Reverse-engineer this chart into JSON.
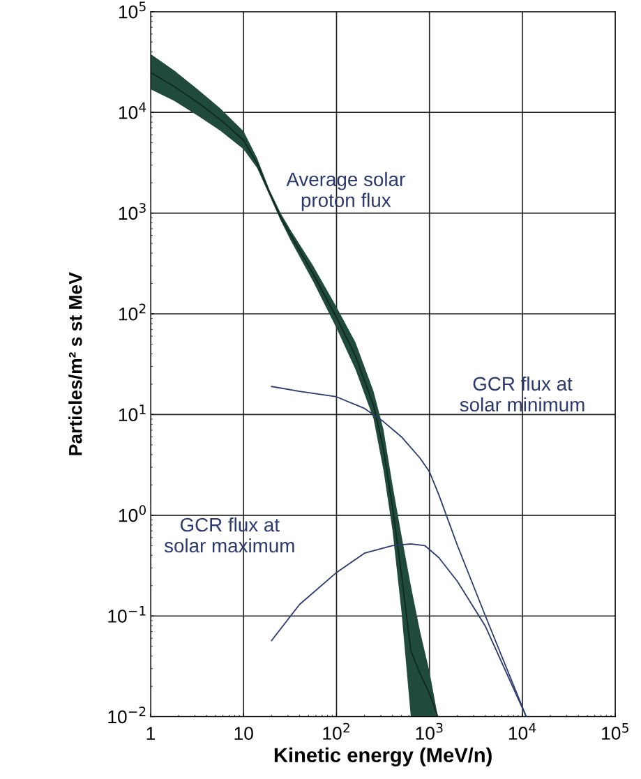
{
  "chart_data": {
    "type": "line",
    "xlabel": "Kinetic energy (MeV/n)",
    "ylabel": "Particles/m² s st MeV",
    "log": "xy",
    "grid": true,
    "marker": "none",
    "line_style": "solid",
    "xlim": [
      1,
      100000
    ],
    "ylim": [
      0.01,
      100000
    ],
    "xticks": [
      {
        "value": 1,
        "label": "1"
      },
      {
        "value": 10,
        "label": "10"
      },
      {
        "value": 100,
        "label": "10$^{2}$"
      },
      {
        "value": 1000,
        "label": "10$^{3}$"
      },
      {
        "value": 10000,
        "label": "10$^{4}$"
      },
      {
        "value": 100000,
        "label": "10$^{5}$"
      }
    ],
    "yticks": [
      {
        "value": 0.01,
        "label": "10$^{−2}$"
      },
      {
        "value": 0.1,
        "label": "10$^{−1}$"
      },
      {
        "value": 1,
        "label": "10$^{0}$"
      },
      {
        "value": 10,
        "label": "10$^{1}$"
      },
      {
        "value": 100,
        "label": "10$^{2}$"
      },
      {
        "value": 1000,
        "label": "10$^{3}$"
      },
      {
        "value": 10000,
        "label": "10$^{4}$"
      },
      {
        "value": 100000,
        "label": "10$^{5}$"
      }
    ],
    "series": [
      {
        "color": "#10281f",
        "x": [
          1,
          1.8,
          3.2,
          5.6,
          10,
          14,
          19,
          25,
          32,
          56,
          100,
          160,
          250,
          320,
          400,
          500,
          630,
          790,
          1000,
          1230
        ],
        "values": [
          25000,
          18000,
          12600,
          8500,
          5300,
          3100,
          1600,
          920,
          610,
          250,
          92,
          38,
          12.4,
          4.5,
          1.2,
          0.26,
          0.045,
          0.027,
          0.017,
          0.01
        ],
        "lower": [
          17000,
          13000,
          9300,
          6600,
          4300,
          2800,
          1500,
          850,
          540,
          210,
          72,
          28,
          9.1,
          2.8,
          0.71,
          0.11,
          0.01,
          0.01,
          0.01,
          0.01
        ],
        "upper": [
          38000,
          26000,
          17000,
          11000,
          6500,
          3500,
          1700,
          1000,
          680,
          300,
          117,
          52,
          17,
          7.1,
          2.0,
          0.63,
          0.2,
          0.071,
          0.028,
          0.01
        ]
      },
      {
        "color": "#2b3a6e",
        "x": [
          20,
          40,
          100,
          200,
          320,
          500,
          790,
          1000,
          1260,
          2000,
          4000,
          11000
        ],
        "values": [
          19,
          17,
          15,
          11.5,
          8.5,
          6.0,
          3.7,
          2.7,
          1.6,
          0.5,
          0.1,
          0.01
        ]
      },
      {
        "color": "#2b3a6e",
        "x": [
          20,
          40,
          100,
          200,
          400,
          630,
          890,
          1260,
          2000,
          4000,
          11000
        ],
        "values": [
          0.057,
          0.13,
          0.27,
          0.42,
          0.5,
          0.52,
          0.5,
          0.38,
          0.22,
          0.079,
          0.01
        ]
      }
    ],
    "annotations": [
      "Average solar\nproton flux",
      "GCR flux at\nsolar minimum",
      "GCR flux at\nsolar maximum"
    ]
  }
}
